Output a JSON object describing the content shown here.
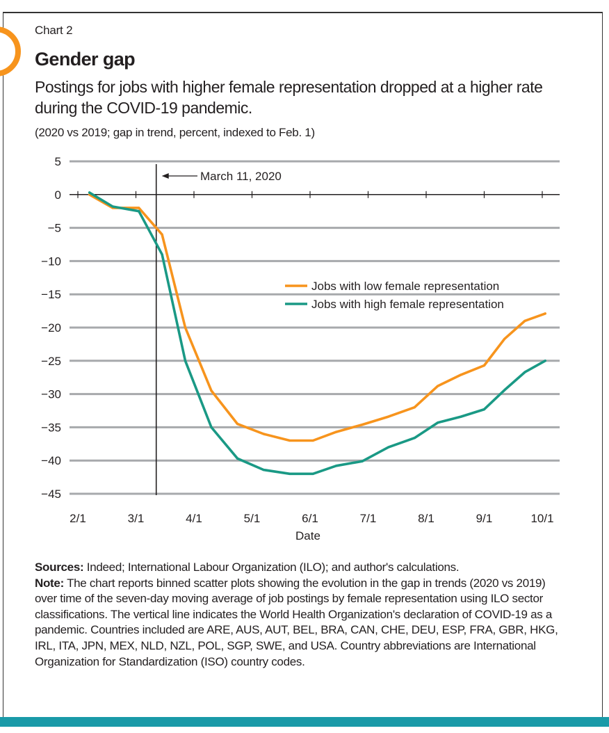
{
  "header": {
    "chart_label": "Chart 2",
    "title": "Gender gap",
    "subtitle": "Postings for jobs with higher female representation dropped at a higher rate during the COVID-19 pandemic.",
    "unit_note": "(2020 vs 2019; gap in trend, percent, indexed to Feb. 1)"
  },
  "colors": {
    "low": "#f7941d",
    "high": "#1a9985",
    "accent_bar": "#1a9aa8"
  },
  "chart_data": {
    "type": "line",
    "title": "Gender gap",
    "xlabel": "Date",
    "ylabel": "",
    "ylim": [
      -45,
      5
    ],
    "yticks": [
      5,
      0,
      -5,
      -10,
      -15,
      -20,
      -25,
      -30,
      -35,
      -40,
      -45
    ],
    "ytick_labels": [
      "5",
      "0",
      "−5",
      "−10",
      "−15",
      "−20",
      "−25",
      "−30",
      "−35",
      "−40",
      "−45"
    ],
    "xlim": [
      0,
      8.25
    ],
    "xticks": [
      0,
      1,
      2,
      3,
      4,
      5,
      6,
      7,
      8
    ],
    "xtick_labels": [
      "2/1",
      "3/1",
      "4/1",
      "5/1",
      "6/1",
      "7/1",
      "8/1",
      "9/1",
      "10/1"
    ],
    "grid": true,
    "annotation": {
      "label": "March 11, 2020",
      "x": 1.35
    },
    "legend": [
      "Jobs with low female representation",
      "Jobs with high female representation"
    ],
    "series": [
      {
        "name": "Jobs with low female representation",
        "color": "#f7941d",
        "x": [
          0.2,
          0.6,
          1.05,
          1.45,
          1.85,
          2.3,
          2.75,
          3.2,
          3.65,
          4.05,
          4.45,
          4.9,
          5.35,
          5.8,
          6.2,
          6.6,
          7.0,
          7.35,
          7.7,
          8.05
        ],
        "y": [
          0,
          -2,
          -2,
          -6,
          -20,
          -29.5,
          -34.5,
          -36,
          -37,
          -37,
          -35.7,
          -34.6,
          -33.4,
          -32,
          -28.8,
          -27.1,
          -25.7,
          -21.7,
          -19,
          -17.9
        ]
      },
      {
        "name": "Jobs with high female representation",
        "color": "#1a9985",
        "x": [
          0.2,
          0.6,
          1.05,
          1.45,
          1.85,
          2.3,
          2.75,
          3.2,
          3.65,
          4.05,
          4.45,
          4.9,
          5.35,
          5.8,
          6.2,
          6.6,
          7.0,
          7.35,
          7.7,
          8.05
        ],
        "y": [
          0.3,
          -1.8,
          -2.5,
          -9,
          -25,
          -35,
          -39.7,
          -41.4,
          -42,
          -42,
          -40.8,
          -40.1,
          -38,
          -36.6,
          -34.3,
          -33.4,
          -32.3,
          -29.4,
          -26.7,
          -25
        ]
      }
    ]
  },
  "notes": {
    "sources_label": "Sources:",
    "sources_text": " Indeed; International Labour Organization (ILO); and author's calculations.",
    "note_label": "Note:",
    "note_text": " The chart reports binned scatter plots showing the evolution in the gap in trends (2020 vs 2019) over time of the seven-day moving average of job postings by female representation using ILO sector classifications. The vertical line indicates the World Health Organization's declaration of COVID-19 as a pandemic. Countries included are ARE, AUS, AUT, BEL, BRA, CAN, CHE, DEU, ESP, FRA, GBR, HKG, IRL, ITA, JPN, MEX, NLD, NZL, POL, SGP, SWE, and USA. Country abbreviations are International Organization for Standardization (ISO) country codes."
  }
}
